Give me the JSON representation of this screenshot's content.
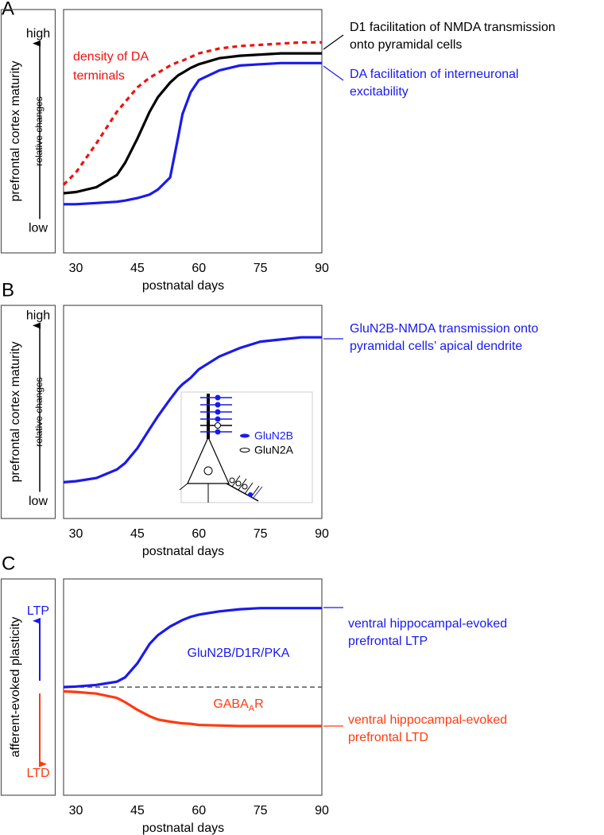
{
  "chart_data": [
    {
      "type": "line",
      "panel_label": "A",
      "xlabel": "postnatal days",
      "ylabel": "prefrontal cortex maturity",
      "ylabel_note": "relative changes",
      "xlim": [
        27,
        90
      ],
      "xticks": [
        30,
        45,
        60,
        75,
        90
      ],
      "ylim": [
        0,
        100
      ],
      "yticks": [
        {
          "value": 10,
          "label": "low"
        },
        {
          "value": 90,
          "label": "high"
        }
      ],
      "x": [
        27,
        30,
        35,
        40,
        42,
        45,
        48,
        50,
        53,
        55,
        56,
        58,
        60,
        65,
        70,
        75,
        80,
        85,
        90
      ],
      "series": [
        {
          "label": [
            "D1 facilitation of NMDA transmission",
            "onto pyramidal cells"
          ],
          "color": "#000000",
          "dash": false,
          "values": [
            24.5,
            25,
            27,
            32,
            37,
            47,
            58,
            64,
            70,
            73,
            74,
            76,
            77.5,
            80,
            81,
            81.5,
            82,
            82,
            82
          ]
        },
        {
          "label": [
            "density of DA",
            "terminals"
          ],
          "color": "#ee1111",
          "dash": true,
          "values": [
            28,
            33,
            45,
            58,
            62,
            68,
            72,
            74,
            77,
            78.5,
            79,
            80.5,
            82,
            84,
            85,
            85.5,
            86,
            86.5,
            86.5
          ]
        },
        {
          "label": [
            "DA facilitation of interneuronal",
            "excitability"
          ],
          "color": "#1a1aee",
          "dash": false,
          "values": [
            20,
            20,
            20.5,
            21,
            21.5,
            22.5,
            24,
            26,
            31,
            48,
            57,
            66,
            71,
            75,
            77,
            77.5,
            78,
            78,
            78
          ]
        }
      ]
    },
    {
      "type": "line",
      "panel_label": "B",
      "xlabel": "postnatal days",
      "ylabel": "prefrontal cortex maturity",
      "ylabel_note": "relative changes",
      "xlim": [
        27,
        90
      ],
      "xticks": [
        30,
        45,
        60,
        75,
        90
      ],
      "ylim": [
        0,
        100
      ],
      "yticks": [
        {
          "value": 8,
          "label": "low"
        },
        {
          "value": 95,
          "label": "high"
        }
      ],
      "x": [
        27,
        30,
        35,
        40,
        42,
        45,
        48,
        50,
        53,
        55,
        56,
        58,
        60,
        65,
        70,
        75,
        80,
        85,
        90
      ],
      "series": [
        {
          "label": [
            "GluN2B-NMDA transmission onto",
            "pyramidal cells’ apical dendrite"
          ],
          "color": "#1a1aee",
          "dash": false,
          "values": [
            17,
            17.5,
            19,
            23,
            26,
            33,
            42,
            48,
            56,
            61,
            63,
            66,
            70,
            76,
            80,
            83,
            84,
            85,
            85
          ]
        }
      ],
      "inset_legend": [
        {
          "label": "GluN2B",
          "color": "#1a1aee"
        },
        {
          "label": "GluN2A",
          "color": "#000000"
        }
      ]
    },
    {
      "type": "line",
      "panel_label": "C",
      "xlabel": "postnatal days",
      "ylabel": "afferent-evoked plasticity",
      "xlim": [
        27,
        90
      ],
      "xticks": [
        30,
        45,
        60,
        75,
        90
      ],
      "ylim": [
        -100,
        100
      ],
      "hline": 0,
      "yticks": [
        {
          "value": -80,
          "label": "LTD"
        },
        {
          "value": 70,
          "label": "LTP"
        }
      ],
      "x": [
        27,
        30,
        35,
        40,
        42,
        45,
        48,
        50,
        53,
        55,
        56,
        58,
        60,
        65,
        70,
        75,
        80,
        85,
        90
      ],
      "series": [
        {
          "label": [
            "ventral hippocampal-evoked",
            "prefrontal LTP"
          ],
          "mechanism": [
            "GluN2B/D1R/PKA"
          ],
          "color": "#1a1aee",
          "dash": false,
          "values": [
            0,
            0.5,
            2,
            5,
            9,
            22,
            40,
            48,
            56,
            60,
            62,
            65,
            67,
            70,
            72,
            73,
            73,
            73,
            73
          ]
        },
        {
          "label": [
            "ventral hippocampal-evoked",
            "prefrontal LTD"
          ],
          "mechanism": [
            "GABA",
            "A",
            "R"
          ],
          "color": "#ff3a10",
          "dash": false,
          "values": [
            -4,
            -4.5,
            -6,
            -10,
            -14,
            -21,
            -27,
            -30,
            -32,
            -33,
            -33.5,
            -34,
            -35,
            -35.5,
            -36,
            -36,
            -36,
            -36,
            -36
          ]
        }
      ]
    }
  ]
}
